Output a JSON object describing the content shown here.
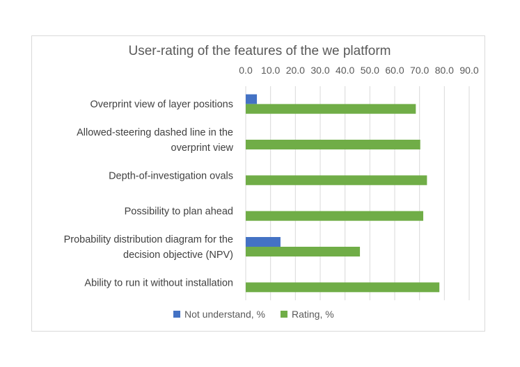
{
  "chart_data": {
    "type": "bar",
    "orientation": "horizontal",
    "title": "User-rating of the features of the we platform",
    "xlim": [
      0,
      90
    ],
    "xticks": [
      "0.0",
      "10.0",
      "20.0",
      "30.0",
      "40.0",
      "50.0",
      "60.0",
      "70.0",
      "80.0",
      "90.0"
    ],
    "x_axis_position": "top",
    "grid": true,
    "legend_position": "bottom",
    "categories": [
      [
        "Overprint view of layer positions"
      ],
      [
        "Allowed-steering dashed line in the",
        "overprint view"
      ],
      [
        "Depth-of-investigation ovals"
      ],
      [
        "Possibility to plan ahead"
      ],
      [
        "Probability distribution diagram for the",
        "decision objective (NPV)"
      ],
      [
        "Ability to run it without installation"
      ]
    ],
    "series": [
      {
        "name": "Not understand, %",
        "color": "#4472c4",
        "values": [
          4.5,
          0,
          0,
          0,
          14.0,
          0
        ]
      },
      {
        "name": "Rating, %",
        "color": "#70ad47",
        "values": [
          68.5,
          70.3,
          73.0,
          71.5,
          46.0,
          78.0
        ]
      }
    ]
  }
}
